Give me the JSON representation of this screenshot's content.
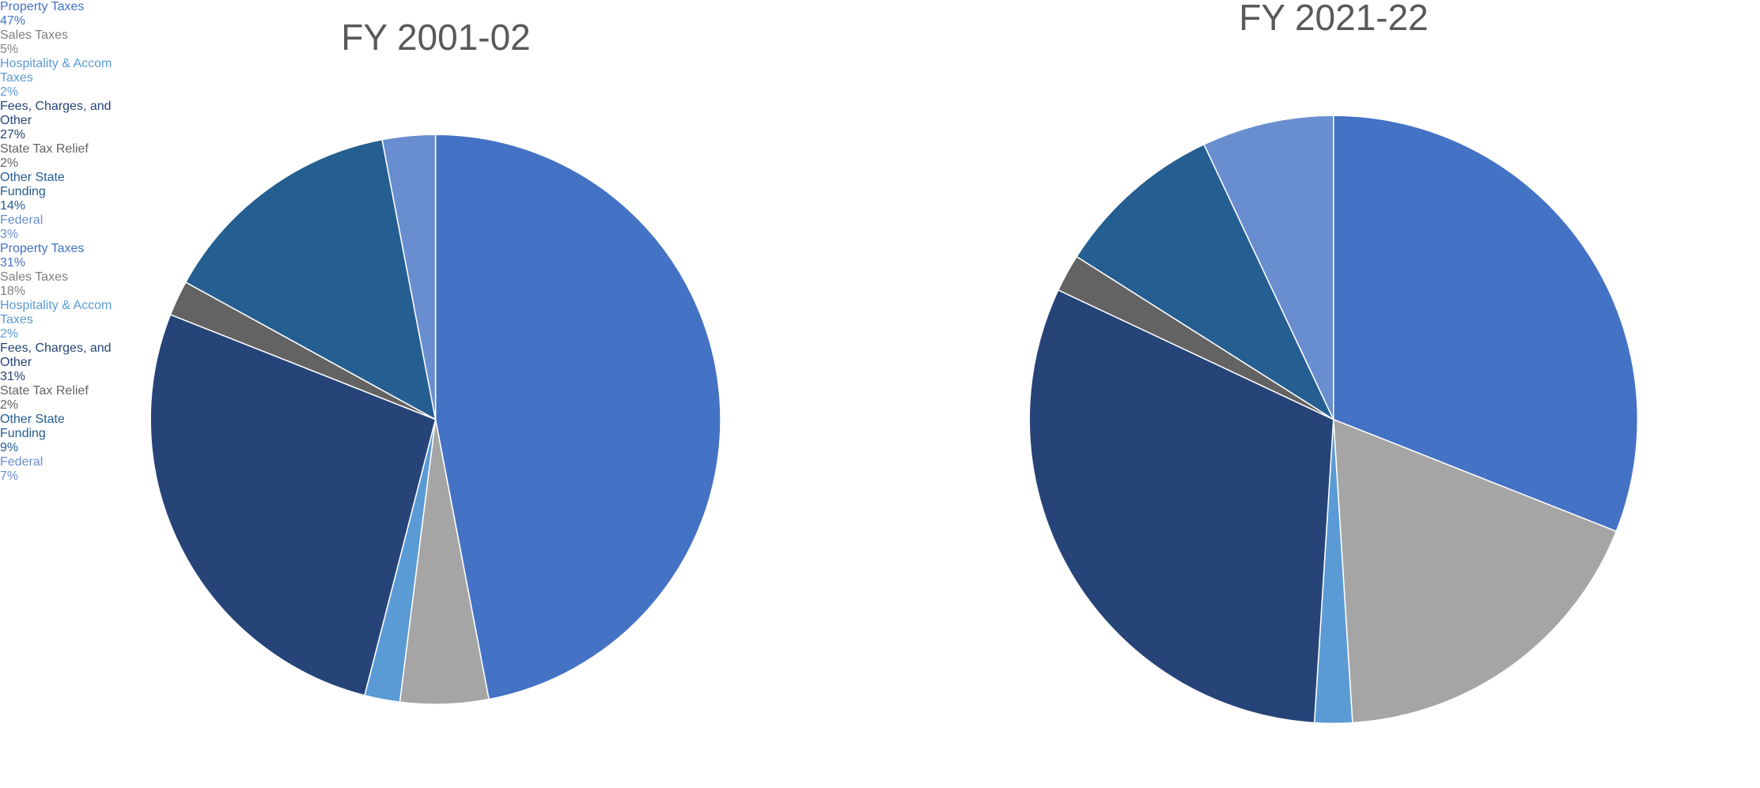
{
  "chart_data": [
    {
      "type": "pie",
      "title": "FY 2001-02",
      "categories": [
        "Property Taxes",
        "Sales Taxes",
        "Hospitality & Accom Taxes",
        "Fees, Charges, and Other",
        "State Tax Relief",
        "Other State Funding",
        "Federal"
      ],
      "values": [
        47,
        5,
        2,
        27,
        2,
        14,
        3
      ],
      "value_labels": [
        "47%",
        "5%",
        "2%",
        "27%",
        "2%",
        "14%",
        "3%"
      ],
      "colors": [
        "#4472c4",
        "#a5a5a5",
        "#5b9bd5",
        "#264478",
        "#636363",
        "#255e91",
        "#698ed0"
      ]
    },
    {
      "type": "pie",
      "title": "FY 2021-22",
      "categories": [
        "Property Taxes",
        "Sales Taxes",
        "Hospitality & Accom Taxes",
        "Fees, Charges, and Other",
        "State Tax Relief",
        "Other State Funding",
        "Federal"
      ],
      "values": [
        31,
        18,
        2,
        31,
        2,
        9,
        7
      ],
      "value_labels": [
        "31%",
        "18%",
        "2%",
        "31%",
        "2%",
        "9%",
        "7%"
      ],
      "colors": [
        "#4472c4",
        "#a5a5a5",
        "#5b9bd5",
        "#264478",
        "#636363",
        "#255e91",
        "#698ed0"
      ]
    }
  ]
}
